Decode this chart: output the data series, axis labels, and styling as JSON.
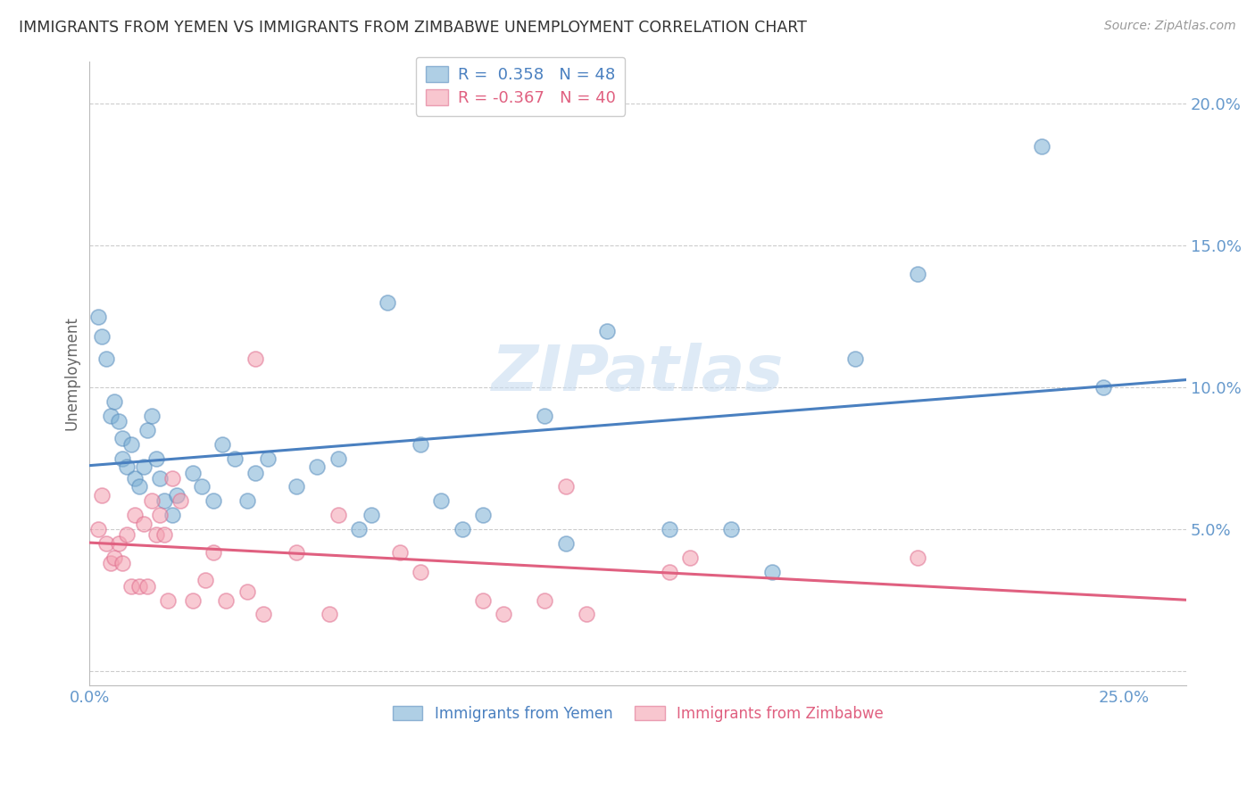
{
  "title": "IMMIGRANTS FROM YEMEN VS IMMIGRANTS FROM ZIMBABWE UNEMPLOYMENT CORRELATION CHART",
  "source": "Source: ZipAtlas.com",
  "ylabel": "Unemployment",
  "blue_color": "#7BAFD4",
  "pink_color": "#F4A0B0",
  "blue_edge_color": "#5B8FBF",
  "pink_edge_color": "#E07090",
  "blue_line_color": "#4A80C0",
  "pink_line_color": "#E06080",
  "axis_color": "#6699CC",
  "title_color": "#333333",
  "source_color": "#999999",
  "ylabel_color": "#666666",
  "watermark": "ZIPatlas",
  "watermark_color": "#C8DCF0",
  "legend_label_blue": "Immigrants from Yemen",
  "legend_label_pink": "Immigrants from Zimbabwe",
  "legend_R_blue": "R =  0.358",
  "legend_N_blue": "N = 48",
  "legend_R_pink": "R = -0.367",
  "legend_N_pink": "N = 40",
  "xlim": [
    0.0,
    0.265
  ],
  "ylim": [
    -0.005,
    0.215
  ],
  "ytick_vals": [
    0.0,
    0.05,
    0.1,
    0.15,
    0.2
  ],
  "ytick_labels": [
    "",
    "5.0%",
    "10.0%",
    "15.0%",
    "20.0%"
  ],
  "xtick_vals": [
    0.0,
    0.05,
    0.1,
    0.15,
    0.2,
    0.25
  ],
  "xtick_labels": [
    "0.0%",
    "",
    "",
    "",
    "",
    "25.0%"
  ],
  "blue_x": [
    0.002,
    0.003,
    0.004,
    0.005,
    0.006,
    0.007,
    0.008,
    0.008,
    0.009,
    0.01,
    0.011,
    0.012,
    0.013,
    0.014,
    0.015,
    0.016,
    0.017,
    0.018,
    0.02,
    0.021,
    0.025,
    0.027,
    0.03,
    0.032,
    0.035,
    0.038,
    0.04,
    0.043,
    0.05,
    0.055,
    0.06,
    0.065,
    0.068,
    0.072,
    0.08,
    0.085,
    0.09,
    0.095,
    0.11,
    0.115,
    0.125,
    0.14,
    0.155,
    0.165,
    0.185,
    0.2,
    0.23,
    0.245
  ],
  "blue_y": [
    0.125,
    0.118,
    0.11,
    0.09,
    0.095,
    0.088,
    0.082,
    0.075,
    0.072,
    0.08,
    0.068,
    0.065,
    0.072,
    0.085,
    0.09,
    0.075,
    0.068,
    0.06,
    0.055,
    0.062,
    0.07,
    0.065,
    0.06,
    0.08,
    0.075,
    0.06,
    0.07,
    0.075,
    0.065,
    0.072,
    0.075,
    0.05,
    0.055,
    0.13,
    0.08,
    0.06,
    0.05,
    0.055,
    0.09,
    0.045,
    0.12,
    0.05,
    0.05,
    0.035,
    0.11,
    0.14,
    0.185,
    0.1
  ],
  "pink_x": [
    0.002,
    0.003,
    0.004,
    0.005,
    0.006,
    0.007,
    0.008,
    0.009,
    0.01,
    0.011,
    0.012,
    0.013,
    0.014,
    0.015,
    0.016,
    0.017,
    0.018,
    0.019,
    0.02,
    0.022,
    0.025,
    0.028,
    0.03,
    0.033,
    0.038,
    0.04,
    0.042,
    0.05,
    0.058,
    0.06,
    0.075,
    0.08,
    0.095,
    0.1,
    0.11,
    0.115,
    0.12,
    0.14,
    0.145,
    0.2
  ],
  "pink_y": [
    0.05,
    0.062,
    0.045,
    0.038,
    0.04,
    0.045,
    0.038,
    0.048,
    0.03,
    0.055,
    0.03,
    0.052,
    0.03,
    0.06,
    0.048,
    0.055,
    0.048,
    0.025,
    0.068,
    0.06,
    0.025,
    0.032,
    0.042,
    0.025,
    0.028,
    0.11,
    0.02,
    0.042,
    0.02,
    0.055,
    0.042,
    0.035,
    0.025,
    0.02,
    0.025,
    0.065,
    0.02,
    0.035,
    0.04,
    0.04
  ]
}
